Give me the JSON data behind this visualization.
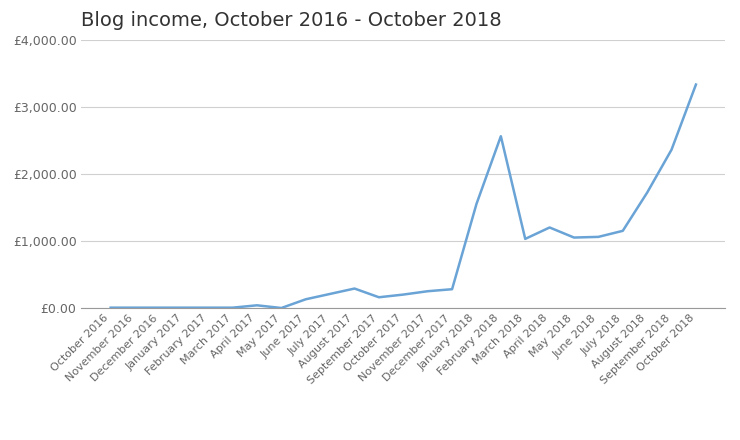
{
  "title": "Blog income, October 2016 - October 2018",
  "labels": [
    "October 2016",
    "November 2016",
    "December 2016",
    "January 2017",
    "February 2017",
    "March 2017",
    "April 2017",
    "May 2017",
    "June 2017",
    "July 2017",
    "August 2017",
    "September 2017",
    "October 2017",
    "November 2017",
    "December 2017",
    "January 2018",
    "February 2018",
    "March 2018",
    "April 2018",
    "May 2018",
    "June 2018",
    "July 2018",
    "August 2018",
    "September 2018",
    "October 2018"
  ],
  "values": [
    5,
    5,
    5,
    5,
    5,
    5,
    40,
    0,
    130,
    210,
    290,
    160,
    200,
    250,
    280,
    1550,
    2560,
    1030,
    1200,
    1050,
    1060,
    1150,
    1720,
    2360,
    3330
  ],
  "line_color": "#6aa3d5",
  "background_color": "#ffffff",
  "grid_color": "#d0d0d0",
  "ylim": [
    0,
    4000
  ],
  "yticks": [
    0,
    1000,
    2000,
    3000,
    4000
  ],
  "title_fontsize": 14,
  "tick_fontsize": 8,
  "ytick_fontsize": 9,
  "title_color": "#333333",
  "tick_color": "#666666"
}
